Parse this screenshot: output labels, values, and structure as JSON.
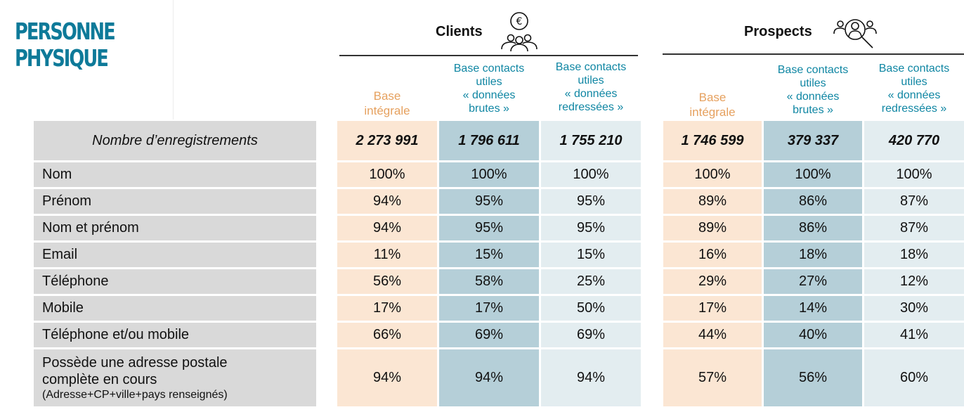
{
  "title": {
    "line1": "PERSONNE",
    "line2": "PHYSIQUE"
  },
  "groups": {
    "clients": {
      "label": "Clients",
      "icon": "euro-people-icon"
    },
    "prospects": {
      "label": "Prospects",
      "icon": "people-search-icon"
    }
  },
  "columns": {
    "base": "Base\nintégrale",
    "brutes": "Base contacts\nutiles\n« données\nbrutes »",
    "redressees": "Base contacts\nutiles\n« données\nredressées »"
  },
  "rows": [
    {
      "label": "Nombre d’enregistrements",
      "values": [
        "2 273 991",
        "1 796 611",
        "1 755 210",
        "1 746 599",
        "379 337",
        "420 770"
      ]
    },
    {
      "label": "Nom",
      "values": [
        "100%",
        "100%",
        "100%",
        "100%",
        "100%",
        "100%"
      ]
    },
    {
      "label": "Prénom",
      "values": [
        "94%",
        "95%",
        "95%",
        "89%",
        "86%",
        "87%"
      ]
    },
    {
      "label": "Nom et prénom",
      "values": [
        "94%",
        "95%",
        "95%",
        "89%",
        "86%",
        "87%"
      ]
    },
    {
      "label": "Email",
      "values": [
        "11%",
        "15%",
        "15%",
        "16%",
        "18%",
        "18%"
      ]
    },
    {
      "label": "Téléphone",
      "values": [
        "56%",
        "58%",
        "25%",
        "29%",
        "27%",
        "12%"
      ]
    },
    {
      "label": "Mobile",
      "values": [
        "17%",
        "17%",
        "50%",
        "17%",
        "14%",
        "30%"
      ]
    },
    {
      "label": "Téléphone et/ou mobile",
      "values": [
        "66%",
        "69%",
        "69%",
        "44%",
        "40%",
        "41%"
      ]
    },
    {
      "label": "Possède une adresse postale\ncomplète en cours",
      "sublabel": "(Adresse+CP+ville+pays renseignés)",
      "values": [
        "94%",
        "94%",
        "94%",
        "57%",
        "56%",
        "60%"
      ]
    }
  ],
  "colors": {
    "title": "#0e7a99",
    "orange_text": "#e6a15f",
    "teal_text": "#0f86a3",
    "col_orange": "#fbe6d3",
    "col_blue": "#b5cfd8",
    "col_light": "#e3edf0",
    "label_bg": "#d9d9d9"
  }
}
